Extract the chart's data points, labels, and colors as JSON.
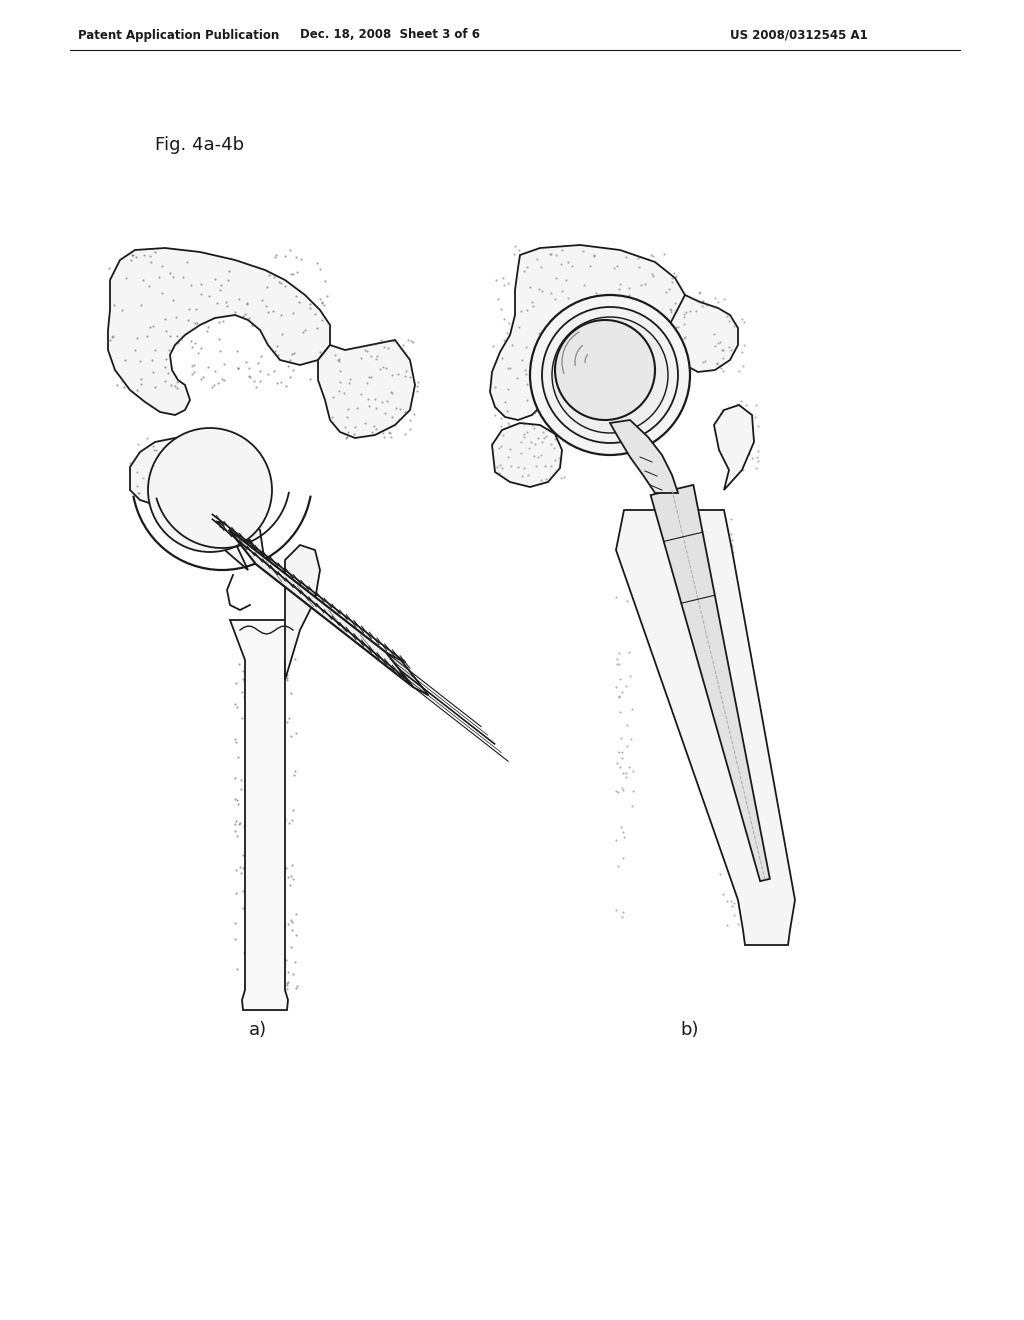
{
  "header_left": "Patent Application Publication",
  "header_mid": "Dec. 18, 2008  Sheet 3 of 6",
  "header_right": "US 2008/0312545 A1",
  "fig_label": "Fig. 4a-4b",
  "label_a": "a)",
  "label_b": "b)",
  "bg_color": "#ffffff",
  "line_color": "#1a1a1a",
  "header_fontsize": 8.5,
  "fig_label_fontsize": 13,
  "sub_label_fontsize": 13
}
